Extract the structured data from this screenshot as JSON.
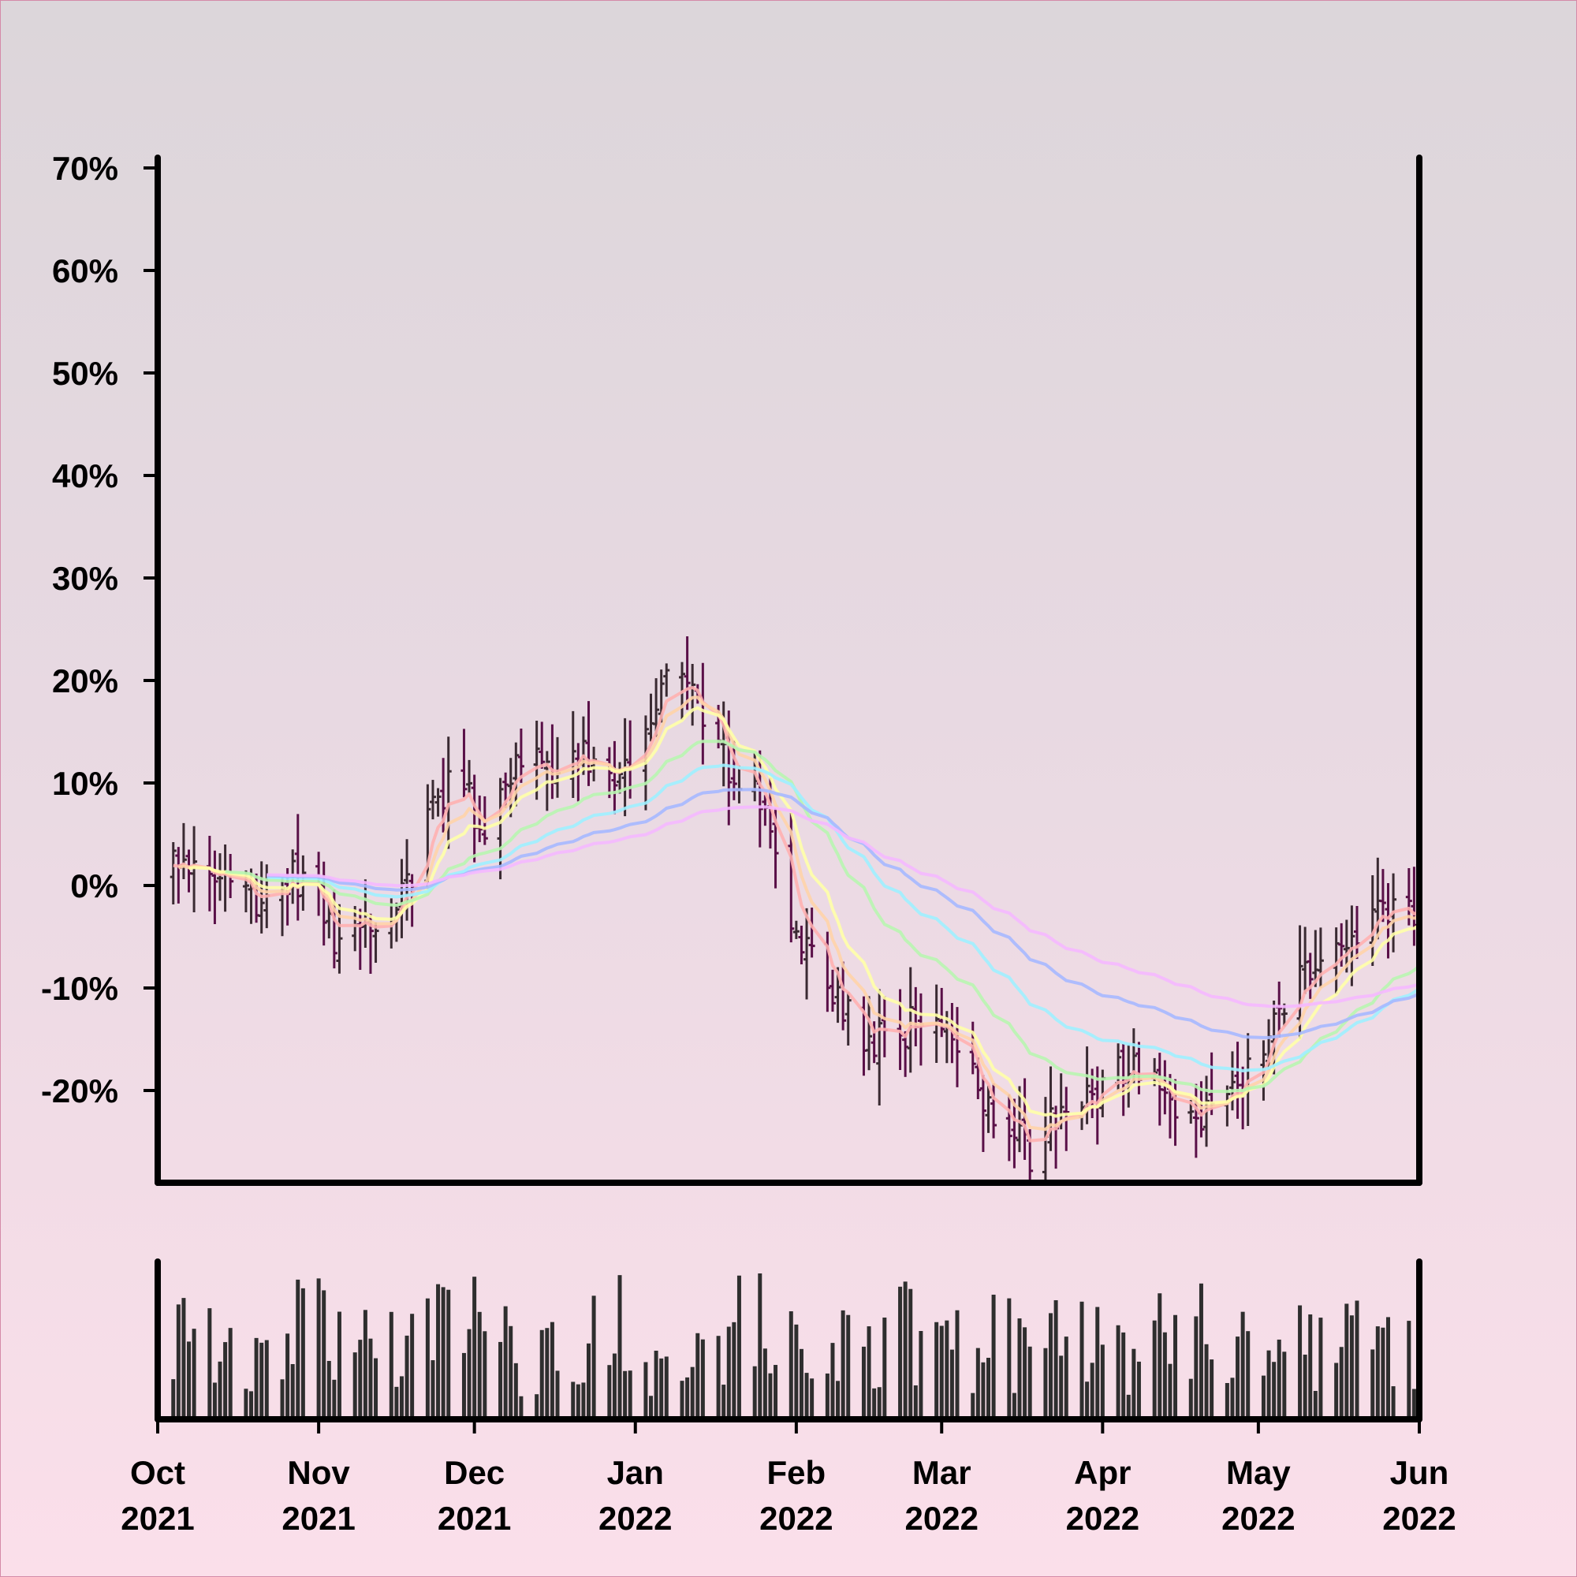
{
  "chart_data": {
    "type": "ohlc",
    "y_axis": {
      "ticks": [
        70,
        60,
        50,
        40,
        30,
        20,
        10,
        0,
        -10,
        -20
      ],
      "tick_labels": [
        "70%",
        "60%",
        "50%",
        "40%",
        "30%",
        "20%",
        "10%",
        "0%",
        "-10%",
        "-20%"
      ],
      "range": [
        -29,
        71
      ]
    },
    "x_axis": {
      "range": [
        "2021-10-01",
        "2022-06-01"
      ],
      "ticks": [
        "2021-10-01",
        "2021-11-01",
        "2021-12-01",
        "2022-01-01",
        "2022-02-01",
        "2022-03-01",
        "2022-04-01",
        "2022-05-01",
        "2022-06-01"
      ],
      "tick_labels": [
        [
          "Oct",
          "2021"
        ],
        [
          "Nov",
          "2021"
        ],
        [
          "Dec",
          "2021"
        ],
        [
          "Jan",
          "2022"
        ],
        [
          "Feb",
          "2022"
        ],
        [
          "Mar",
          "2022"
        ],
        [
          "Apr",
          "2022"
        ],
        [
          "May",
          "2022"
        ],
        [
          "Jun",
          "2022"
        ]
      ]
    },
    "grid": false,
    "legend": "none",
    "price_series": {
      "name": "",
      "approx_close_points": [
        [
          "2021-10-01",
          3
        ],
        [
          "2021-10-08",
          2
        ],
        [
          "2021-10-15",
          -1
        ],
        [
          "2021-10-22",
          -1
        ],
        [
          "2021-10-29",
          1
        ],
        [
          "2021-11-05",
          -6
        ],
        [
          "2021-11-10",
          -4
        ],
        [
          "2021-11-15",
          -4
        ],
        [
          "2021-11-20",
          3
        ],
        [
          "2021-11-27",
          12
        ],
        [
          "2021-12-03",
          5
        ],
        [
          "2021-12-08",
          11
        ],
        [
          "2021-12-13",
          14
        ],
        [
          "2021-12-18",
          10
        ],
        [
          "2021-12-23",
          13
        ],
        [
          "2021-12-28",
          8
        ],
        [
          "2022-01-02",
          14
        ],
        [
          "2022-01-06",
          20
        ],
        [
          "2022-01-10",
          19
        ],
        [
          "2022-01-15",
          16
        ],
        [
          "2022-01-20",
          10
        ],
        [
          "2022-01-26",
          8
        ],
        [
          "2022-02-01",
          -5
        ],
        [
          "2022-02-08",
          -10
        ],
        [
          "2022-02-15",
          -15
        ],
        [
          "2022-02-22",
          -14
        ],
        [
          "2022-02-28",
          -13
        ],
        [
          "2022-03-06",
          -18
        ],
        [
          "2022-03-12",
          -24
        ],
        [
          "2022-03-18",
          -26
        ],
        [
          "2022-03-24",
          -22
        ],
        [
          "2022-03-30",
          -20
        ],
        [
          "2022-04-05",
          -18
        ],
        [
          "2022-04-12",
          -20
        ],
        [
          "2022-04-18",
          -23
        ],
        [
          "2022-04-24",
          -21
        ],
        [
          "2022-05-01",
          -17
        ],
        [
          "2022-05-08",
          -9
        ],
        [
          "2022-05-14",
          -7
        ],
        [
          "2022-05-20",
          -6
        ],
        [
          "2022-05-26",
          -2
        ],
        [
          "2022-06-01",
          -4
        ]
      ],
      "volatility": 4
    },
    "moving_averages": [
      {
        "name": "",
        "window_days": 5,
        "color": "#ffb0b0"
      },
      {
        "name": "",
        "window_days": 8,
        "color": "#ffd3a8"
      },
      {
        "name": "",
        "window_days": 12,
        "color": "#ffffa8"
      },
      {
        "name": "",
        "window_days": 28,
        "color": "#b8f5b0"
      },
      {
        "name": "",
        "window_days": 45,
        "color": "#9ff0ff"
      },
      {
        "name": "",
        "window_days": 70,
        "color": "#a6b8ff"
      },
      {
        "name": "",
        "window_days": 100,
        "color": "#f5b8ff"
      }
    ],
    "volume_panel": {
      "present": true,
      "y_labels": false
    },
    "colors": {
      "up": "#3a2a32",
      "down": "#5a1048",
      "volume": "#2e2e2e",
      "axis": "#000000",
      "background_top": "#dcd6da",
      "background_bottom": "#fbdfea"
    }
  }
}
